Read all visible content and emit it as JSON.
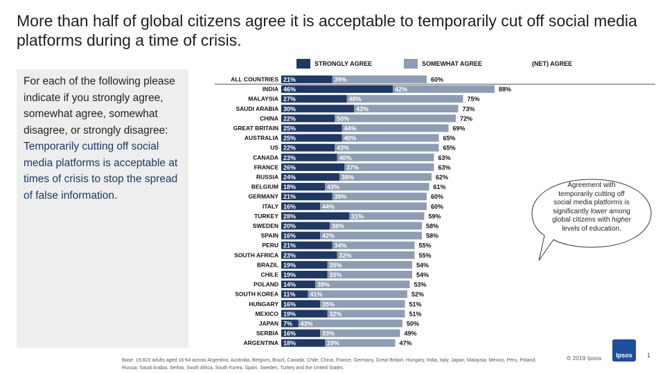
{
  "title": "More than half of global citizens agree it is acceptable to temporarily cut off social media platforms during a time of crisis.",
  "question": {
    "intro": "For each of the following please indicate if you strongly agree, somewhat agree, somewhat disagree, or strongly disagree:",
    "statement": "Temporarily cutting off social media platforms is acceptable at times of crisis to stop the spread of false information."
  },
  "legend": {
    "strongly": "STRONGLY AGREE",
    "somewhat": "SOMEWHAT AGREE",
    "net": "(NET) AGREE"
  },
  "colors": {
    "strongly": "#1f3864",
    "somewhat": "#8e9db3",
    "text_highlight": "#1f3864"
  },
  "callout": {
    "line1": "Agreement with temporarily cutting off social media platforms is significantly ",
    "lower": "lower",
    "line2": " among global citizens with ",
    "higher": "higher",
    "line3": " levels of education."
  },
  "footnote": "Base: 19,823 adults aged 16-64 across Argentina, Australia, Belgium, Brazil, Canada, Chile, China, France, Germany, Great Britain, Hungary, India, Italy, Japan, Malaysia, Mexico, Peru, Poland, Russia, Saudi Arabia, Serbia, South Africa, South Korea, Spain, Sweden, Turkey and the United States.",
  "copyright": "© 2019 Ipsos",
  "logo_text": "Ipsos",
  "page_number": "1",
  "chart_data": {
    "type": "bar",
    "orientation": "horizontal",
    "stacked": true,
    "categories": [
      "ALL COUNTRIES",
      "INDIA",
      "MALAYSIA",
      "SAUDI ARABIA",
      "CHINA",
      "GREAT BRITAIN",
      "AUSTRALIA",
      "US",
      "CANADA",
      "FRANCE",
      "RUSSIA",
      "BELGIUM",
      "GERMANY",
      "ITALY",
      "TURKEY",
      "SWEDEN",
      "SPAIN",
      "PERU",
      "SOUTH AFRICA",
      "BRAZIL",
      "CHILE",
      "POLAND",
      "SOUTH KOREA",
      "HUNGARY",
      "MEXICO",
      "JAPAN",
      "SERBIA",
      "ARGENTINA"
    ],
    "series": [
      {
        "name": "STRONGLY AGREE",
        "values": [
          21,
          46,
          27,
          30,
          22,
          25,
          25,
          22,
          23,
          26,
          24,
          18,
          21,
          16,
          28,
          20,
          16,
          21,
          23,
          19,
          19,
          14,
          11,
          16,
          19,
          7,
          16,
          18
        ]
      },
      {
        "name": "SOMEWHAT AGREE",
        "values": [
          39,
          42,
          48,
          43,
          50,
          44,
          40,
          43,
          40,
          37,
          38,
          43,
          39,
          44,
          31,
          38,
          42,
          34,
          32,
          35,
          35,
          39,
          41,
          35,
          32,
          43,
          33,
          29
        ]
      }
    ],
    "net": {
      "name": "(NET) AGREE",
      "values": [
        60,
        88,
        75,
        73,
        72,
        69,
        65,
        65,
        63,
        63,
        62,
        61,
        60,
        60,
        59,
        58,
        58,
        55,
        55,
        54,
        54,
        53,
        52,
        51,
        51,
        50,
        49,
        47
      ]
    },
    "value_suffix": "%"
  }
}
